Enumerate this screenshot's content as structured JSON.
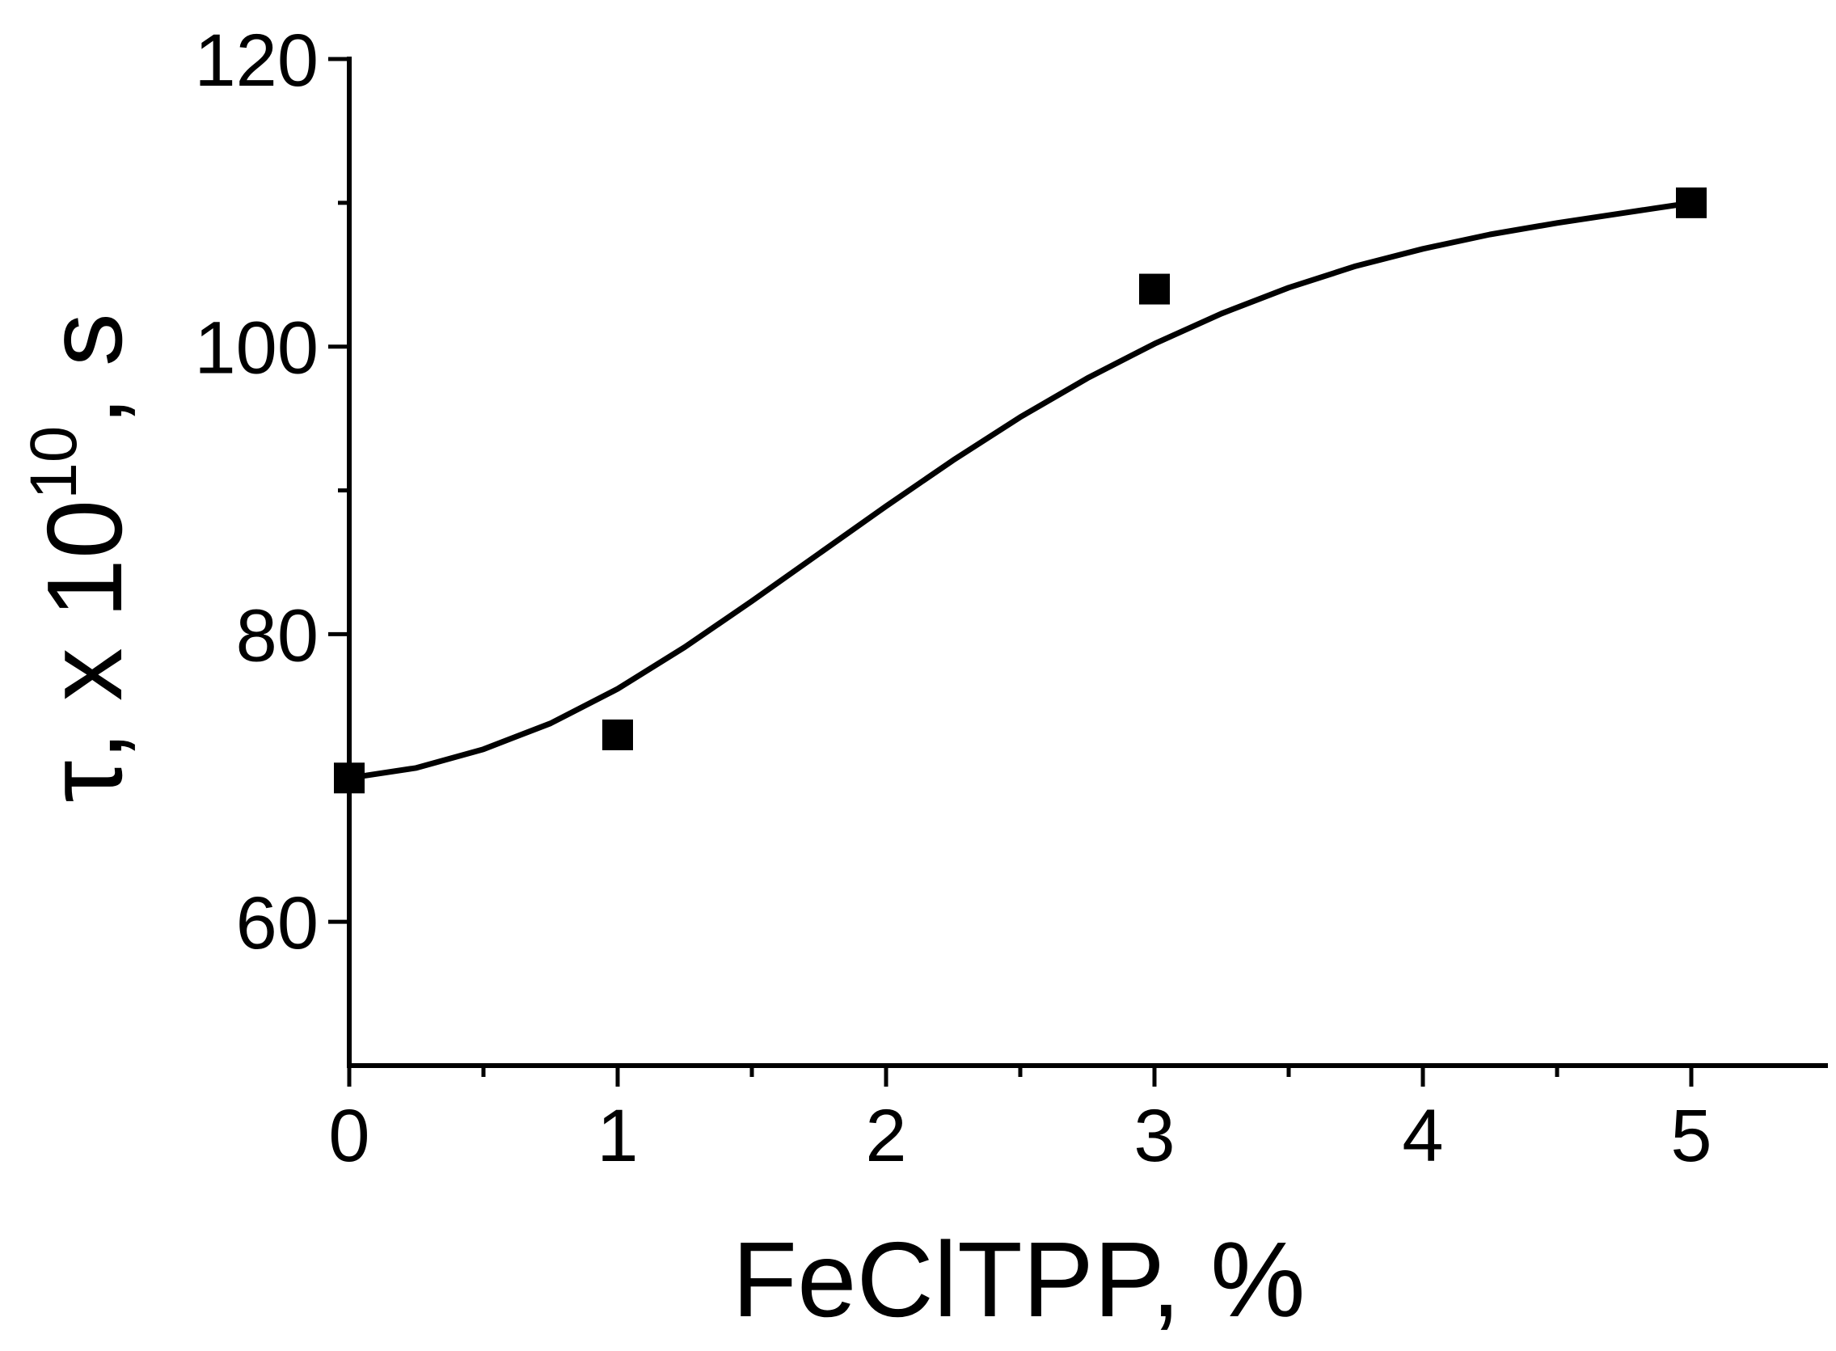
{
  "chart_data": {
    "type": "scatter",
    "xlabel": "FeClTPP, %",
    "ylabel": {
      "prefix": "τ, x 10",
      "superscript": "10",
      "suffix": ", s"
    },
    "xlim": [
      0,
      5.5
    ],
    "ylim": [
      50,
      120
    ],
    "x_ticks": [
      0,
      1,
      2,
      3,
      4,
      5
    ],
    "x_minor_ticks": [
      0.5,
      1.5,
      2.5,
      3.5,
      4.5
    ],
    "y_ticks": [
      60,
      80,
      100,
      120
    ],
    "y_minor_ticks": [
      70,
      90,
      110
    ],
    "series": [
      {
        "kind": "markers",
        "marker": "square",
        "x": [
          0,
          1,
          3,
          5
        ],
        "y": [
          70,
          73,
          104,
          110
        ]
      },
      {
        "kind": "fit-line",
        "x": [
          0,
          0.25,
          0.5,
          0.75,
          1,
          1.25,
          1.5,
          1.75,
          2,
          2.25,
          2.5,
          2.75,
          3,
          3.25,
          3.5,
          3.75,
          4,
          4.25,
          4.5,
          4.75,
          5
        ],
        "y": [
          70,
          70.7,
          72,
          73.8,
          76.2,
          79.1,
          82.3,
          85.6,
          88.9,
          92.1,
          95.1,
          97.8,
          100.2,
          102.3,
          104.1,
          105.6,
          106.8,
          107.8,
          108.6,
          109.3,
          110
        ]
      }
    ],
    "grid": false,
    "legend": "none",
    "colors": {
      "line": "#000000",
      "markers": "#000000"
    }
  }
}
